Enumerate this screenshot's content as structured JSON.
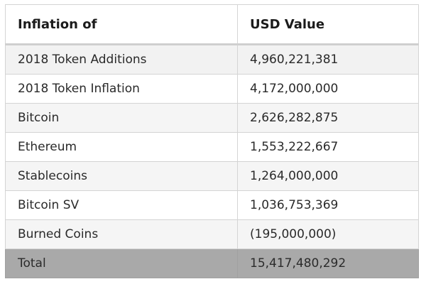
{
  "table": {
    "headers": [
      "Inflation of",
      "USD Value"
    ],
    "rows": [
      [
        "2018 Token Additions",
        "4,960,221,381"
      ],
      [
        "2018 Token Inflation",
        "4,172,000,000"
      ],
      [
        "Bitcoin",
        "2,626,282,875"
      ],
      [
        "Ethereum",
        "1,553,222,667"
      ],
      [
        "Stablecoins",
        "1,264,000,000"
      ],
      [
        "Bitcoin SV",
        "1,036,753,369"
      ],
      [
        "Burned Coins",
        "(195,000,000)"
      ]
    ],
    "total": [
      "Total",
      "15,417,480,292"
    ]
  },
  "colors": {
    "total_row_bg": "#a9a9a9",
    "border": "#d4d4d4",
    "row_alt_bg": "#f5f5f5"
  }
}
